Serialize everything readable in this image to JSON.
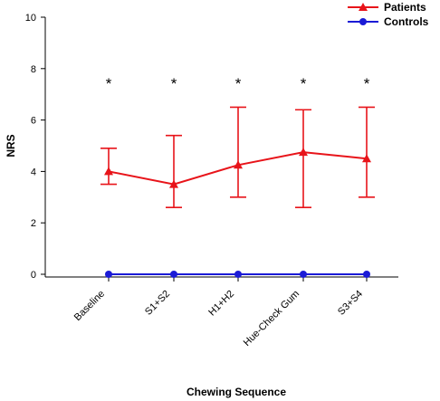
{
  "chart_data": {
    "type": "line",
    "title": "",
    "xlabel": "Chewing Sequence",
    "ylabel": "NRS",
    "categories": [
      "Baseline",
      "S1+S2",
      "H1+H2",
      "Hue-Check Gum",
      "S3+S4"
    ],
    "ylim": [
      0,
      10
    ],
    "yticks": [
      0,
      2,
      4,
      6,
      8,
      10
    ],
    "grid": false,
    "legend_position": "top-right",
    "significance_marker": "*",
    "significance_at": [
      0,
      1,
      2,
      3,
      4
    ],
    "series": [
      {
        "name": "Patients",
        "color": "#e8141a",
        "marker": "triangle",
        "values": [
          4.0,
          3.5,
          4.25,
          4.75,
          4.5
        ],
        "error_upper": [
          4.9,
          5.4,
          6.5,
          6.4,
          6.5
        ],
        "error_lower": [
          3.5,
          2.6,
          3.0,
          2.6,
          3.0
        ]
      },
      {
        "name": "Controls",
        "color": "#1b1bd6",
        "marker": "circle",
        "values": [
          0,
          0,
          0,
          0,
          0
        ]
      }
    ]
  }
}
